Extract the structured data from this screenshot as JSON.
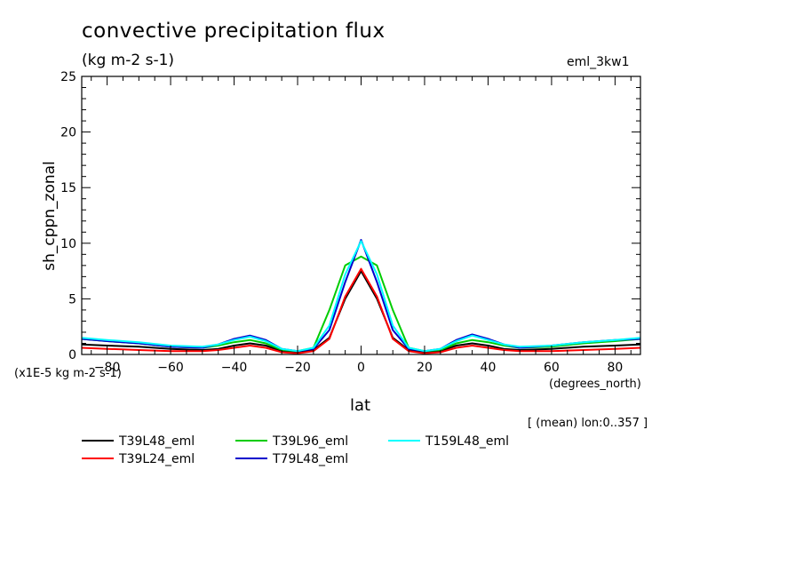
{
  "chart_data": {
    "type": "line",
    "title": "convective precipitation flux",
    "units": "(kg m-2 s-1)",
    "run_id": "eml_3kw1",
    "ylabel": "sh_cppn_zonal",
    "yscale_note": "(x1E-5 kg m-2 s-1)",
    "xlabel": "lat",
    "x_units": "(degrees_north)",
    "note": "[ (mean) lon:0..357 ]",
    "xlim": [
      -88,
      88
    ],
    "ylim": [
      0,
      25
    ],
    "x_ticks": [
      -80,
      -60,
      -40,
      -20,
      0,
      20,
      40,
      60,
      80
    ],
    "y_ticks": [
      0,
      5,
      10,
      15,
      20,
      25
    ],
    "x": [
      -88,
      -80,
      -70,
      -60,
      -50,
      -45,
      -40,
      -35,
      -30,
      -25,
      -20,
      -15,
      -10,
      -5,
      0,
      5,
      10,
      15,
      20,
      25,
      30,
      35,
      40,
      45,
      50,
      60,
      70,
      80,
      88
    ],
    "series": [
      {
        "name": "T39L48_eml",
        "color": "#000000",
        "values": [
          0.9,
          0.8,
          0.7,
          0.5,
          0.4,
          0.5,
          0.8,
          1.0,
          0.8,
          0.3,
          0.2,
          0.4,
          1.5,
          5.0,
          7.5,
          5.0,
          1.5,
          0.4,
          0.2,
          0.3,
          0.8,
          1.0,
          0.8,
          0.5,
          0.4,
          0.5,
          0.7,
          0.8,
          0.9
        ]
      },
      {
        "name": "T39L24_eml",
        "color": "#ff0000",
        "values": [
          0.6,
          0.5,
          0.4,
          0.3,
          0.3,
          0.4,
          0.6,
          0.8,
          0.6,
          0.2,
          0.1,
          0.3,
          1.4,
          5.2,
          7.7,
          5.2,
          1.4,
          0.3,
          0.1,
          0.2,
          0.6,
          0.8,
          0.6,
          0.4,
          0.3,
          0.3,
          0.4,
          0.5,
          0.6
        ]
      },
      {
        "name": "T39L96_eml",
        "color": "#00cc00",
        "values": [
          1.4,
          1.2,
          1.0,
          0.7,
          0.6,
          0.8,
          1.1,
          1.3,
          1.0,
          0.4,
          0.3,
          0.6,
          4.0,
          8.0,
          8.8,
          8.0,
          4.0,
          0.6,
          0.3,
          0.4,
          1.0,
          1.3,
          1.1,
          0.8,
          0.6,
          0.7,
          1.0,
          1.2,
          1.4
        ]
      },
      {
        "name": "T79L48_eml",
        "color": "#0000cc",
        "values": [
          1.4,
          1.2,
          1.0,
          0.7,
          0.6,
          0.9,
          1.4,
          1.7,
          1.3,
          0.5,
          0.3,
          0.5,
          2.2,
          6.5,
          10.3,
          6.5,
          2.2,
          0.5,
          0.3,
          0.5,
          1.3,
          1.8,
          1.4,
          0.9,
          0.6,
          0.8,
          1.1,
          1.3,
          1.4
        ]
      },
      {
        "name": "T159L48_eml",
        "color": "#00ffff",
        "values": [
          1.5,
          1.3,
          1.1,
          0.8,
          0.7,
          0.9,
          1.3,
          1.6,
          1.2,
          0.5,
          0.3,
          0.6,
          2.6,
          7.2,
          10.2,
          7.2,
          2.6,
          0.6,
          0.3,
          0.5,
          1.2,
          1.7,
          1.3,
          0.9,
          0.7,
          0.8,
          1.1,
          1.3,
          1.5
        ]
      }
    ]
  }
}
